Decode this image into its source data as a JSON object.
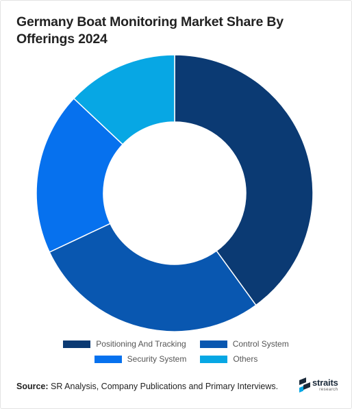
{
  "title": "Germany Boat Monitoring Market Share By Offerings 2024",
  "chart_data": {
    "type": "pie",
    "donut": true,
    "title": "Germany Boat Monitoring Market Share By Offerings 2024",
    "categories": [
      "Positioning And Tracking",
      "Control System",
      "Security System",
      "Others"
    ],
    "values": [
      40,
      28,
      19,
      13
    ],
    "unit": "%",
    "colors": [
      "#0b3a73",
      "#0957b0",
      "#0671ee",
      "#07a7e4"
    ],
    "legend": "bottom"
  },
  "legend": {
    "items": [
      {
        "label": "Positioning And Tracking",
        "color": "#0b3a73"
      },
      {
        "label": "Control System",
        "color": "#0957b0"
      },
      {
        "label": "Security System",
        "color": "#0671ee"
      },
      {
        "label": "Others",
        "color": "#07a7e4"
      }
    ]
  },
  "source": {
    "label": "Source:",
    "text": "SR Analysis, Company Publications and Primary Interviews."
  },
  "logo": {
    "word": "straits",
    "sub": "research"
  }
}
